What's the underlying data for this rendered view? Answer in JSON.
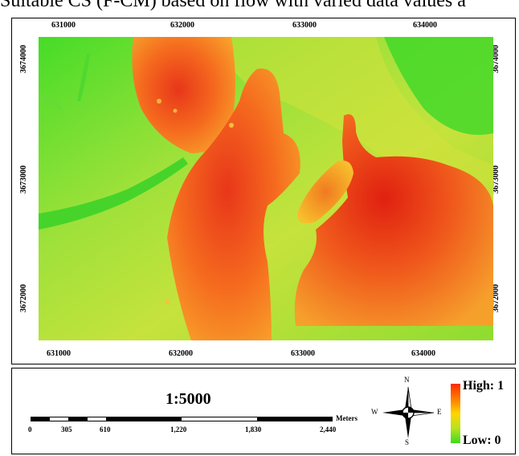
{
  "header_text": "Suitable CS (F-CM) based on flow with varied data values a",
  "map": {
    "x_ticks_top": [
      "631000",
      "632000",
      "633000",
      "634000"
    ],
    "x_ticks_bottom": [
      "631000",
      "632000",
      "633000",
      "634000"
    ],
    "y_ticks_left": [
      "3674000",
      "3673000",
      "3672000"
    ],
    "y_ticks_right": [
      "3674000",
      "3673000",
      "3672000"
    ],
    "colors": {
      "high": "#ff2a00",
      "mid": "#ffd400",
      "low": "#3cdc1e",
      "frame": "#000000"
    }
  },
  "footer": {
    "scale_ratio": "1:5000",
    "scalebar_labels": [
      "0",
      "305",
      "610",
      "1,220",
      "1,830",
      "2,440"
    ],
    "scalebar_unit": "Meters",
    "compass": {
      "n": "N",
      "s": "S",
      "e": "E",
      "w": "W"
    },
    "legend": {
      "high": "High: 1",
      "low": "Low: 0"
    }
  }
}
